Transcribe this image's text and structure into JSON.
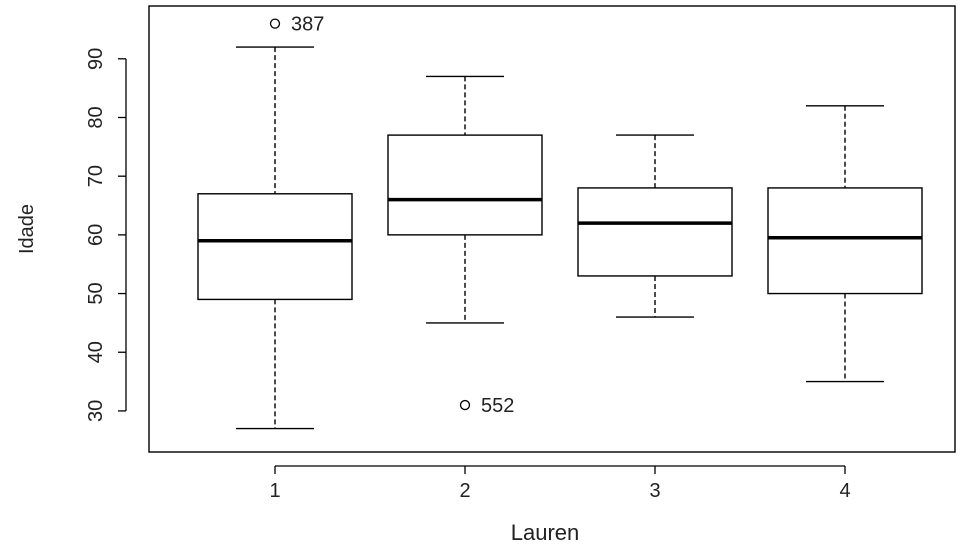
{
  "chart_data": {
    "type": "boxplot",
    "title": "",
    "xlabel": "Lauren",
    "ylabel": "Idade",
    "categories": [
      "1",
      "2",
      "3",
      "4"
    ],
    "ylim": [
      23,
      99
    ],
    "y_ticks": [
      30,
      40,
      50,
      60,
      70,
      80,
      90
    ],
    "grid": false,
    "boxes": [
      {
        "category": "1",
        "whisker_low": 27,
        "q1": 49,
        "median": 59,
        "q3": 67,
        "whisker_high": 92
      },
      {
        "category": "2",
        "whisker_low": 45,
        "q1": 60,
        "median": 66,
        "q3": 77,
        "whisker_high": 87
      },
      {
        "category": "3",
        "whisker_low": 46,
        "q1": 53,
        "median": 62,
        "q3": 68,
        "whisker_high": 77
      },
      {
        "category": "4",
        "whisker_low": 35,
        "q1": 50,
        "median": 59.5,
        "q3": 68,
        "whisker_high": 82
      }
    ],
    "outliers": [
      {
        "category": "1",
        "value": 96,
        "label": "387"
      },
      {
        "category": "2",
        "value": 31,
        "label": "552"
      }
    ]
  }
}
